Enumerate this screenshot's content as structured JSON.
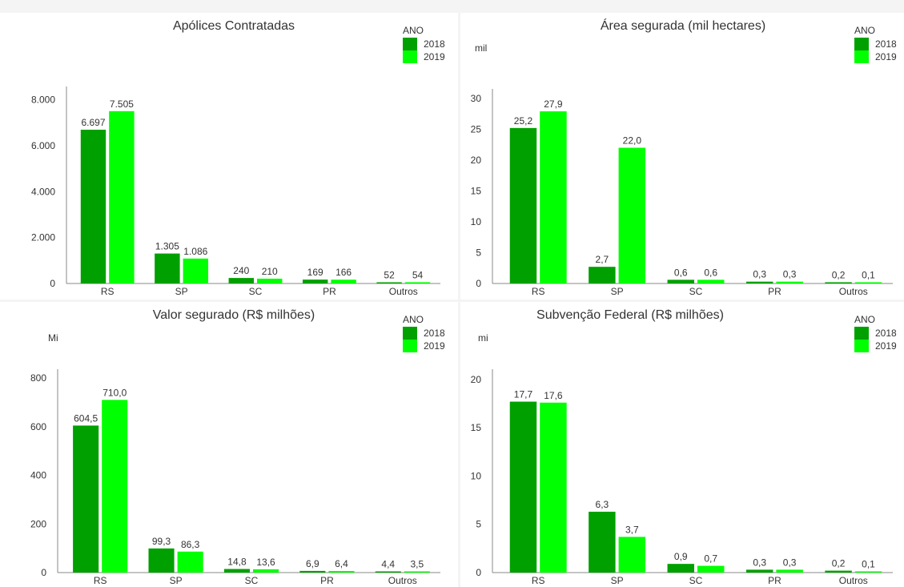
{
  "legend": {
    "title": "ANO",
    "items": [
      {
        "label": "2018",
        "color": "#00a000"
      },
      {
        "label": "2019",
        "color": "#00ff00"
      }
    ]
  },
  "chart_data": [
    {
      "type": "bar",
      "title": "Apólices Contratadas",
      "unit": "",
      "categories": [
        "RS",
        "SP",
        "SC",
        "PR",
        "Outros"
      ],
      "series": [
        {
          "name": "2018",
          "values": [
            6697,
            1305,
            240,
            169,
            52
          ],
          "labels": [
            "6.697",
            "1.305",
            "240",
            "169",
            "52"
          ]
        },
        {
          "name": "2019",
          "values": [
            7505,
            1086,
            210,
            166,
            54
          ],
          "labels": [
            "7.505",
            "1.086",
            "210",
            "166",
            "54"
          ]
        }
      ],
      "yticks": [
        0,
        2000,
        4000,
        6000,
        8000
      ],
      "ytick_labels": [
        "0",
        "2.000",
        "4.000",
        "6.000",
        "8.000"
      ],
      "ylim": [
        0,
        8300
      ]
    },
    {
      "type": "bar",
      "title": "Área segurada (mil hectares)",
      "unit": "mil",
      "categories": [
        "RS",
        "SP",
        "SC",
        "PR",
        "Outros"
      ],
      "series": [
        {
          "name": "2018",
          "values": [
            25.2,
            2.7,
            0.6,
            0.3,
            0.2
          ],
          "labels": [
            "25,2",
            "2,7",
            "0,6",
            "0,3",
            "0,2"
          ]
        },
        {
          "name": "2019",
          "values": [
            27.9,
            22.0,
            0.6,
            0.3,
            0.1
          ],
          "labels": [
            "27,9",
            "22,0",
            "0,6",
            "0,3",
            "0,1"
          ]
        }
      ],
      "yticks": [
        0,
        5,
        10,
        15,
        20,
        25,
        30
      ],
      "ytick_labels": [
        "0",
        "5",
        "10",
        "15",
        "20",
        "25",
        "30"
      ],
      "ylim": [
        0,
        30.5
      ]
    },
    {
      "type": "bar",
      "title": "Valor segurado (R$ milhões)",
      "unit": "Mi",
      "categories": [
        "RS",
        "SP",
        "SC",
        "PR",
        "Outros"
      ],
      "series": [
        {
          "name": "2018",
          "values": [
            604.5,
            99.3,
            14.8,
            6.9,
            4.4
          ],
          "labels": [
            "604,5",
            "99,3",
            "14,8",
            "6,9",
            "4,4"
          ]
        },
        {
          "name": "2019",
          "values": [
            710.0,
            86.3,
            13.6,
            6.4,
            3.5
          ],
          "labels": [
            "710,0",
            "86,3",
            "13,6",
            "6,4",
            "3,5"
          ]
        }
      ],
      "yticks": [
        0,
        200,
        400,
        600,
        800
      ],
      "ytick_labels": [
        "0",
        "200",
        "400",
        "600",
        "800"
      ],
      "ylim": [
        0,
        810
      ]
    },
    {
      "type": "bar",
      "title": "Subvenção Federal (R$ milhões)",
      "unit": "mi",
      "categories": [
        "RS",
        "SP",
        "SC",
        "PR",
        "Outros"
      ],
      "series": [
        {
          "name": "2018",
          "values": [
            17.7,
            6.3,
            0.9,
            0.3,
            0.2
          ],
          "labels": [
            "17,7",
            "6,3",
            "0,9",
            "0,3",
            "0,2"
          ]
        },
        {
          "name": "2019",
          "values": [
            17.6,
            3.7,
            0.7,
            0.3,
            0.1
          ],
          "labels": [
            "17,6",
            "3,7",
            "0,7",
            "0,3",
            "0,1"
          ]
        }
      ],
      "yticks": [
        0,
        5,
        10,
        15,
        20
      ],
      "ytick_labels": [
        "0",
        "5",
        "10",
        "15",
        "20"
      ],
      "ylim": [
        0,
        20.4
      ]
    }
  ]
}
